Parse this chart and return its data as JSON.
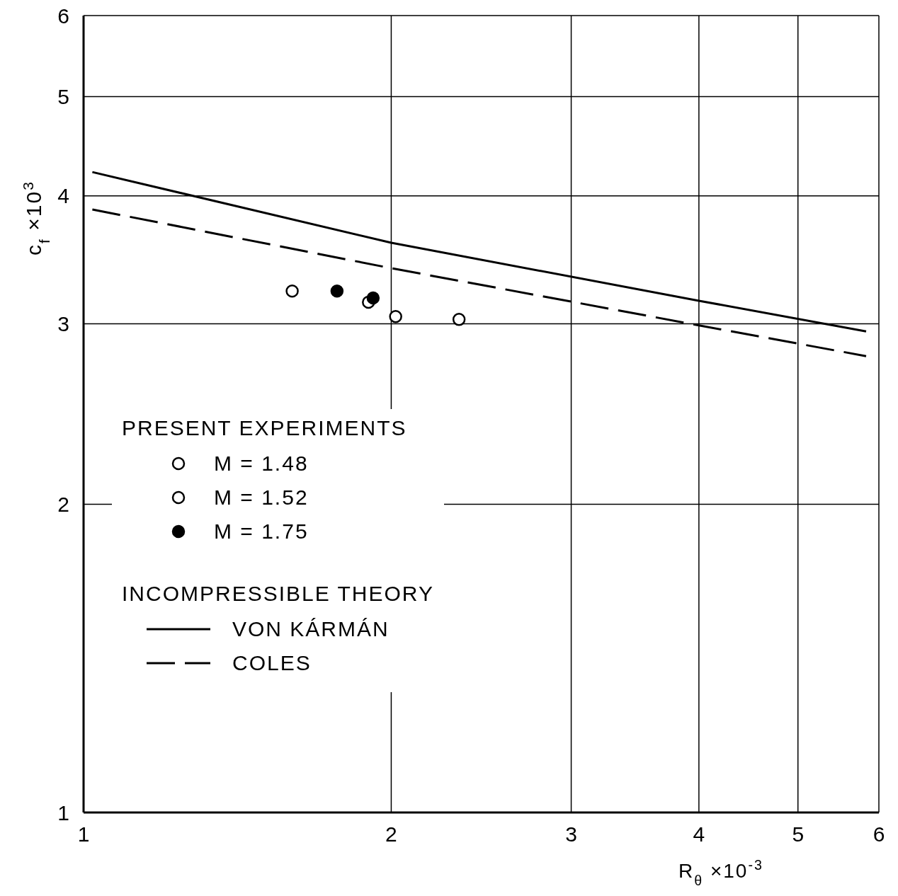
{
  "chart_data": {
    "type": "scatter",
    "xlabel": "R$_{θ}$ ×10$^{-3}$",
    "ylabel": "c$_{f}$ ×10$^{3}$",
    "xlim": [
      1,
      6
    ],
    "xticks": [
      1,
      2,
      3,
      4,
      5,
      6
    ],
    "ylim": [
      1,
      6
    ],
    "yticks": [
      1,
      2,
      3,
      4,
      5,
      6
    ],
    "log": "xy",
    "grid": true,
    "legend": "bottom left",
    "annotations": [
      "PRESENT EXPERIMENTS",
      "INCOMPRESSIBLE THEORY"
    ],
    "series": [
      {
        "name": "M = 1.48",
        "marker": "circle",
        "color": "#ffffff",
        "x": [
          1.9,
          2.33
        ],
        "values": [
          3.15,
          3.03
        ]
      },
      {
        "name": "M = 1.52",
        "marker": "circle",
        "color": "#ffffff",
        "x": [
          1.6,
          2.02
        ],
        "values": [
          3.23,
          3.05
        ]
      },
      {
        "name": "M = 1.75",
        "marker": "circle",
        "color": "#000000",
        "x": [
          1.77,
          1.92
        ],
        "values": [
          3.23,
          3.18
        ]
      },
      {
        "name": "VON KÁRMÁN",
        "type": "line",
        "marker": "none",
        "line_style": "solid",
        "color": "#000000",
        "x": [
          1.02,
          2,
          4,
          5.83
        ],
        "values": [
          4.22,
          3.6,
          3.16,
          2.95
        ]
      },
      {
        "name": "COLES",
        "type": "line",
        "marker": "none",
        "line_style": "dashed",
        "color": "#000000",
        "x": [
          1.02,
          2,
          4,
          5.83
        ],
        "values": [
          3.88,
          3.4,
          2.99,
          2.79
        ]
      }
    ]
  }
}
